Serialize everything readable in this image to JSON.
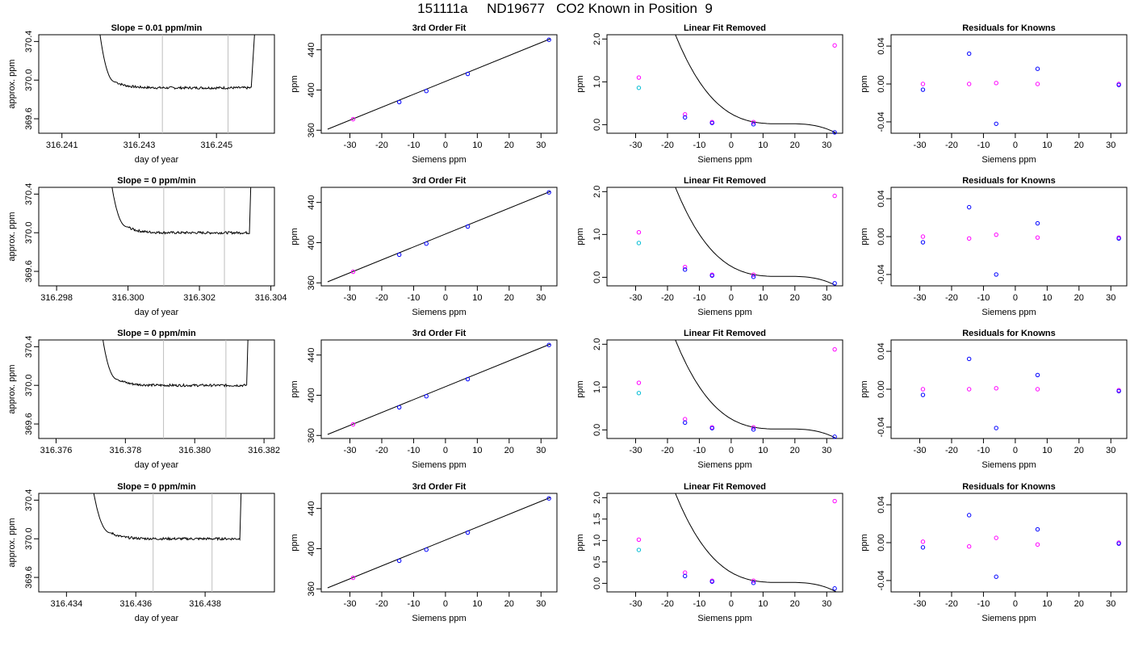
{
  "figure_title": "151111a     ND19677   CO2 Known in Position  9",
  "colors": {
    "axis": "#000000",
    "line": "#000000",
    "vline": "#bebebe",
    "blue": "#0000ff",
    "magenta": "#ff00ff",
    "cyan": "#00bcd4"
  },
  "chart_data": [
    {
      "type": "line",
      "row": 1,
      "title": "Slope =  0.01  ppm/min",
      "xlabel": "day of year",
      "ylabel": "approx. ppm",
      "xticks": [
        "316.241",
        "316.243",
        "316.245"
      ],
      "yticks": [
        "369.6",
        "370.0",
        "370.4"
      ],
      "xlim": [
        316.2404,
        316.2465
      ],
      "ylim": [
        369.45,
        370.47
      ],
      "vlines": [
        316.2436,
        316.2453
      ],
      "rise_start": 316.2418,
      "flat_start": 316.2424,
      "flat_end": 316.2459,
      "drop_end": 316.2461,
      "flat_level": 369.92
    },
    {
      "type": "line",
      "row": 1,
      "title": "3rd Order Fit",
      "xlabel": "Siemens ppm",
      "ylabel": "ppm",
      "xticks": [
        "-30",
        "-20",
        "-10",
        "0",
        "10",
        "20",
        "30"
      ],
      "yticks": [
        "360",
        "400",
        "440"
      ],
      "xlim": [
        -39,
        35
      ],
      "ylim": [
        357,
        455
      ],
      "line": [
        [
          -37,
          361
        ],
        [
          33,
          451
        ]
      ],
      "points": [
        {
          "x": -29,
          "y": 371,
          "c": "magenta"
        },
        {
          "x": -14.5,
          "y": 388,
          "c": "blue"
        },
        {
          "x": -6,
          "y": 399,
          "c": "blue"
        },
        {
          "x": 7,
          "y": 416,
          "c": "blue"
        },
        {
          "x": 32.5,
          "y": 450,
          "c": "blue"
        }
      ]
    },
    {
      "type": "scatter",
      "row": 1,
      "title": "Linear Fit Removed",
      "xlabel": "Siemens ppm",
      "ylabel": "ppm",
      "xticks": [
        "-30",
        "-20",
        "-10",
        "0",
        "10",
        "20",
        "30"
      ],
      "yticks": [
        "0.0",
        "1.0",
        "2.0"
      ],
      "xlim": [
        -39,
        35
      ],
      "ylim": [
        -0.2,
        2.1
      ],
      "points": [
        {
          "x": -29,
          "y": 1.1,
          "c": "magenta"
        },
        {
          "x": -29,
          "y": 0.86,
          "c": "cyan"
        },
        {
          "x": -14.5,
          "y": 0.24,
          "c": "magenta"
        },
        {
          "x": -14.5,
          "y": 0.17,
          "c": "blue"
        },
        {
          "x": -6,
          "y": 0.06,
          "c": "magenta"
        },
        {
          "x": -6,
          "y": 0.04,
          "c": "blue"
        },
        {
          "x": 7,
          "y": 0.06,
          "c": "magenta"
        },
        {
          "x": 7,
          "y": 0.01,
          "c": "blue"
        },
        {
          "x": 32.5,
          "y": 1.85,
          "c": "magenta"
        },
        {
          "x": 32.5,
          "y": -0.18,
          "c": "blue"
        }
      ]
    },
    {
      "type": "scatter",
      "row": 1,
      "title": "Residuals for Knowns",
      "xlabel": "Siemens ppm",
      "ylabel": "ppm",
      "xticks": [
        "-30",
        "-20",
        "-10",
        "0",
        "10",
        "20",
        "30"
      ],
      "yticks": [
        "-0.04",
        "0.00",
        "0.04"
      ],
      "xlim": [
        -39,
        35
      ],
      "ylim": [
        -0.052,
        0.052
      ],
      "points": [
        {
          "x": -29,
          "y": 0.0,
          "c": "magenta"
        },
        {
          "x": -29,
          "y": -0.006,
          "c": "blue"
        },
        {
          "x": -14.5,
          "y": 0.0,
          "c": "magenta"
        },
        {
          "x": -14.5,
          "y": 0.032,
          "c": "blue"
        },
        {
          "x": -6,
          "y": 0.001,
          "c": "magenta"
        },
        {
          "x": -6,
          "y": -0.042,
          "c": "blue"
        },
        {
          "x": 7,
          "y": 0.0,
          "c": "magenta"
        },
        {
          "x": 7,
          "y": 0.016,
          "c": "blue"
        },
        {
          "x": 32.5,
          "y": 0.0,
          "c": "magenta"
        },
        {
          "x": 32.5,
          "y": -0.001,
          "c": "blue"
        }
      ]
    },
    {
      "type": "line",
      "row": 2,
      "title": "Slope =  0  ppm/min",
      "xlabel": "day of year",
      "ylabel": "approx. ppm",
      "xticks": [
        "316.298",
        "316.300",
        "316.302",
        "316.304"
      ],
      "yticks": [
        "369.6",
        "370.0",
        "370.4"
      ],
      "xlim": [
        316.2975,
        316.3041
      ],
      "ylim": [
        369.45,
        370.47
      ],
      "vlines": [
        316.301,
        316.3027
      ],
      "rise_start": 316.2993,
      "flat_start": 316.3,
      "flat_end": 316.3034,
      "drop_end": 316.3035,
      "flat_level": 370.0
    },
    {
      "type": "line",
      "row": 2,
      "title": "3rd Order Fit",
      "xlabel": "Siemens ppm",
      "ylabel": "ppm",
      "xticks": [
        "-30",
        "-20",
        "-10",
        "0",
        "10",
        "20",
        "30"
      ],
      "yticks": [
        "360",
        "400",
        "440"
      ],
      "xlim": [
        -39,
        35
      ],
      "ylim": [
        357,
        455
      ],
      "line": [
        [
          -37,
          361
        ],
        [
          33,
          451
        ]
      ],
      "points": [
        {
          "x": -29,
          "y": 371,
          "c": "magenta"
        },
        {
          "x": -14.5,
          "y": 388,
          "c": "blue"
        },
        {
          "x": -6,
          "y": 399,
          "c": "blue"
        },
        {
          "x": 7,
          "y": 416,
          "c": "blue"
        },
        {
          "x": 32.5,
          "y": 450,
          "c": "blue"
        }
      ]
    },
    {
      "type": "scatter",
      "row": 2,
      "title": "Linear Fit Removed",
      "xlabel": "Siemens ppm",
      "ylabel": "ppm",
      "xticks": [
        "-30",
        "-20",
        "-10",
        "0",
        "10",
        "20",
        "30"
      ],
      "yticks": [
        "0.0",
        "1.0",
        "2.0"
      ],
      "xlim": [
        -39,
        35
      ],
      "ylim": [
        -0.2,
        2.1
      ],
      "points": [
        {
          "x": -29,
          "y": 1.05,
          "c": "magenta"
        },
        {
          "x": -29,
          "y": 0.8,
          "c": "cyan"
        },
        {
          "x": -14.5,
          "y": 0.24,
          "c": "magenta"
        },
        {
          "x": -14.5,
          "y": 0.18,
          "c": "blue"
        },
        {
          "x": -6,
          "y": 0.06,
          "c": "magenta"
        },
        {
          "x": -6,
          "y": 0.04,
          "c": "blue"
        },
        {
          "x": 7,
          "y": 0.06,
          "c": "magenta"
        },
        {
          "x": 7,
          "y": 0.01,
          "c": "blue"
        },
        {
          "x": 32.5,
          "y": 1.9,
          "c": "magenta"
        },
        {
          "x": 32.5,
          "y": -0.14,
          "c": "blue"
        }
      ]
    },
    {
      "type": "scatter",
      "row": 2,
      "title": "Residuals for Knowns",
      "xlabel": "Siemens ppm",
      "ylabel": "ppm",
      "xticks": [
        "-30",
        "-20",
        "-10",
        "0",
        "10",
        "20",
        "30"
      ],
      "yticks": [
        "-0.04",
        "0.00",
        "0.04"
      ],
      "xlim": [
        -39,
        35
      ],
      "ylim": [
        -0.052,
        0.052
      ],
      "points": [
        {
          "x": -29,
          "y": 0.0,
          "c": "magenta"
        },
        {
          "x": -29,
          "y": -0.006,
          "c": "blue"
        },
        {
          "x": -14.5,
          "y": -0.002,
          "c": "magenta"
        },
        {
          "x": -14.5,
          "y": 0.031,
          "c": "blue"
        },
        {
          "x": -6,
          "y": 0.002,
          "c": "magenta"
        },
        {
          "x": -6,
          "y": -0.04,
          "c": "blue"
        },
        {
          "x": 7,
          "y": -0.001,
          "c": "magenta"
        },
        {
          "x": 7,
          "y": 0.014,
          "c": "blue"
        },
        {
          "x": 32.5,
          "y": -0.001,
          "c": "magenta"
        },
        {
          "x": 32.5,
          "y": -0.002,
          "c": "blue"
        }
      ]
    },
    {
      "type": "line",
      "row": 3,
      "title": "Slope =  0  ppm/min",
      "xlabel": "day of year",
      "ylabel": "approx. ppm",
      "xticks": [
        "316.376",
        "316.378",
        "316.380",
        "316.382"
      ],
      "yticks": [
        "369.6",
        "370.0",
        "370.4"
      ],
      "xlim": [
        316.3755,
        316.3823
      ],
      "ylim": [
        369.45,
        370.47
      ],
      "vlines": [
        316.3791,
        316.3809
      ],
      "rise_start": 316.3771,
      "flat_start": 316.3778,
      "flat_end": 316.3815,
      "drop_end": 316.3816,
      "flat_level": 370.0
    },
    {
      "type": "line",
      "row": 3,
      "title": "3rd Order Fit",
      "xlabel": "Siemens ppm",
      "ylabel": "ppm",
      "xticks": [
        "-30",
        "-20",
        "-10",
        "0",
        "10",
        "20",
        "30"
      ],
      "yticks": [
        "360",
        "400",
        "440"
      ],
      "xlim": [
        -39,
        35
      ],
      "ylim": [
        357,
        455
      ],
      "line": [
        [
          -37,
          361
        ],
        [
          33,
          451
        ]
      ],
      "points": [
        {
          "x": -29,
          "y": 371,
          "c": "magenta"
        },
        {
          "x": -14.5,
          "y": 388,
          "c": "blue"
        },
        {
          "x": -6,
          "y": 399,
          "c": "blue"
        },
        {
          "x": 7,
          "y": 416,
          "c": "blue"
        },
        {
          "x": 32.5,
          "y": 450,
          "c": "blue"
        }
      ]
    },
    {
      "type": "scatter",
      "row": 3,
      "title": "Linear Fit Removed",
      "xlabel": "Siemens ppm",
      "ylabel": "ppm",
      "xticks": [
        "-30",
        "-20",
        "-10",
        "0",
        "10",
        "20",
        "30"
      ],
      "yticks": [
        "0.0",
        "1.0",
        "2.0"
      ],
      "xlim": [
        -39,
        35
      ],
      "ylim": [
        -0.2,
        2.1
      ],
      "points": [
        {
          "x": -29,
          "y": 1.1,
          "c": "magenta"
        },
        {
          "x": -29,
          "y": 0.86,
          "c": "cyan"
        },
        {
          "x": -14.5,
          "y": 0.25,
          "c": "magenta"
        },
        {
          "x": -14.5,
          "y": 0.17,
          "c": "blue"
        },
        {
          "x": -6,
          "y": 0.06,
          "c": "magenta"
        },
        {
          "x": -6,
          "y": 0.04,
          "c": "blue"
        },
        {
          "x": 7,
          "y": 0.06,
          "c": "magenta"
        },
        {
          "x": 7,
          "y": 0.01,
          "c": "blue"
        },
        {
          "x": 32.5,
          "y": 1.88,
          "c": "magenta"
        },
        {
          "x": 32.5,
          "y": -0.16,
          "c": "blue"
        }
      ]
    },
    {
      "type": "scatter",
      "row": 3,
      "title": "Residuals for Knowns",
      "xlabel": "Siemens ppm",
      "ylabel": "ppm",
      "xticks": [
        "-30",
        "-20",
        "-10",
        "0",
        "10",
        "20",
        "30"
      ],
      "yticks": [
        "-0.04",
        "0.00",
        "0.04"
      ],
      "xlim": [
        -39,
        35
      ],
      "ylim": [
        -0.052,
        0.052
      ],
      "points": [
        {
          "x": -29,
          "y": 0.0,
          "c": "magenta"
        },
        {
          "x": -29,
          "y": -0.006,
          "c": "blue"
        },
        {
          "x": -14.5,
          "y": 0.0,
          "c": "magenta"
        },
        {
          "x": -14.5,
          "y": 0.032,
          "c": "blue"
        },
        {
          "x": -6,
          "y": 0.001,
          "c": "magenta"
        },
        {
          "x": -6,
          "y": -0.041,
          "c": "blue"
        },
        {
          "x": 7,
          "y": 0.0,
          "c": "magenta"
        },
        {
          "x": 7,
          "y": 0.015,
          "c": "blue"
        },
        {
          "x": 32.5,
          "y": -0.001,
          "c": "magenta"
        },
        {
          "x": 32.5,
          "y": -0.002,
          "c": "blue"
        }
      ]
    },
    {
      "type": "line",
      "row": 4,
      "title": "Slope =  0  ppm/min",
      "xlabel": "day of year",
      "ylabel": "approx. ppm",
      "xticks": [
        "316.434",
        "316.436",
        "316.438"
      ],
      "yticks": [
        "369.6",
        "370.0",
        "370.4"
      ],
      "xlim": [
        316.4332,
        316.44
      ],
      "ylim": [
        369.45,
        370.47
      ],
      "vlines": [
        316.4365,
        316.4382
      ],
      "rise_start": 316.4345,
      "flat_start": 316.4353,
      "flat_end": 316.439,
      "drop_end": 316.4391,
      "flat_level": 370.0
    },
    {
      "type": "line",
      "row": 4,
      "title": "3rd Order Fit",
      "xlabel": "Siemens ppm",
      "ylabel": "ppm",
      "xticks": [
        "-30",
        "-20",
        "-10",
        "0",
        "10",
        "20",
        "30"
      ],
      "yticks": [
        "360",
        "400",
        "440"
      ],
      "xlim": [
        -39,
        35
      ],
      "ylim": [
        357,
        455
      ],
      "line": [
        [
          -37,
          361
        ],
        [
          33,
          451
        ]
      ],
      "points": [
        {
          "x": -29,
          "y": 371,
          "c": "magenta"
        },
        {
          "x": -14.5,
          "y": 388,
          "c": "blue"
        },
        {
          "x": -6,
          "y": 399,
          "c": "blue"
        },
        {
          "x": 7,
          "y": 416,
          "c": "blue"
        },
        {
          "x": 32.5,
          "y": 450,
          "c": "blue"
        }
      ]
    },
    {
      "type": "scatter",
      "row": 4,
      "title": "Linear Fit Removed",
      "xlabel": "Siemens ppm",
      "ylabel": "ppm",
      "xticks": [
        "-30",
        "-20",
        "-10",
        "0",
        "10",
        "20",
        "30"
      ],
      "yticks": [
        "0.0",
        "0.5",
        "1.0",
        "1.5",
        "2.0"
      ],
      "xlim": [
        -39,
        35
      ],
      "ylim": [
        -0.2,
        2.1
      ],
      "points": [
        {
          "x": -29,
          "y": 1.02,
          "c": "magenta"
        },
        {
          "x": -29,
          "y": 0.78,
          "c": "cyan"
        },
        {
          "x": -14.5,
          "y": 0.25,
          "c": "magenta"
        },
        {
          "x": -14.5,
          "y": 0.17,
          "c": "blue"
        },
        {
          "x": -6,
          "y": 0.06,
          "c": "magenta"
        },
        {
          "x": -6,
          "y": 0.04,
          "c": "blue"
        },
        {
          "x": 7,
          "y": 0.06,
          "c": "magenta"
        },
        {
          "x": 7,
          "y": 0.01,
          "c": "blue"
        },
        {
          "x": 32.5,
          "y": 1.92,
          "c": "magenta"
        },
        {
          "x": 32.5,
          "y": -0.12,
          "c": "blue"
        }
      ]
    },
    {
      "type": "scatter",
      "row": 4,
      "title": "Residuals for Knowns",
      "xlabel": "Siemens ppm",
      "ylabel": "ppm",
      "xticks": [
        "-30",
        "-20",
        "-10",
        "0",
        "10",
        "20",
        "30"
      ],
      "yticks": [
        "-0.04",
        "0.00",
        "0.04"
      ],
      "xlim": [
        -39,
        35
      ],
      "ylim": [
        -0.052,
        0.052
      ],
      "points": [
        {
          "x": -29,
          "y": 0.001,
          "c": "magenta"
        },
        {
          "x": -29,
          "y": -0.005,
          "c": "blue"
        },
        {
          "x": -14.5,
          "y": -0.004,
          "c": "magenta"
        },
        {
          "x": -14.5,
          "y": 0.029,
          "c": "blue"
        },
        {
          "x": -6,
          "y": 0.005,
          "c": "magenta"
        },
        {
          "x": -6,
          "y": -0.036,
          "c": "blue"
        },
        {
          "x": 7,
          "y": -0.002,
          "c": "magenta"
        },
        {
          "x": 7,
          "y": 0.014,
          "c": "blue"
        },
        {
          "x": 32.5,
          "y": 0.0,
          "c": "magenta"
        },
        {
          "x": 32.5,
          "y": -0.001,
          "c": "blue"
        }
      ]
    }
  ]
}
